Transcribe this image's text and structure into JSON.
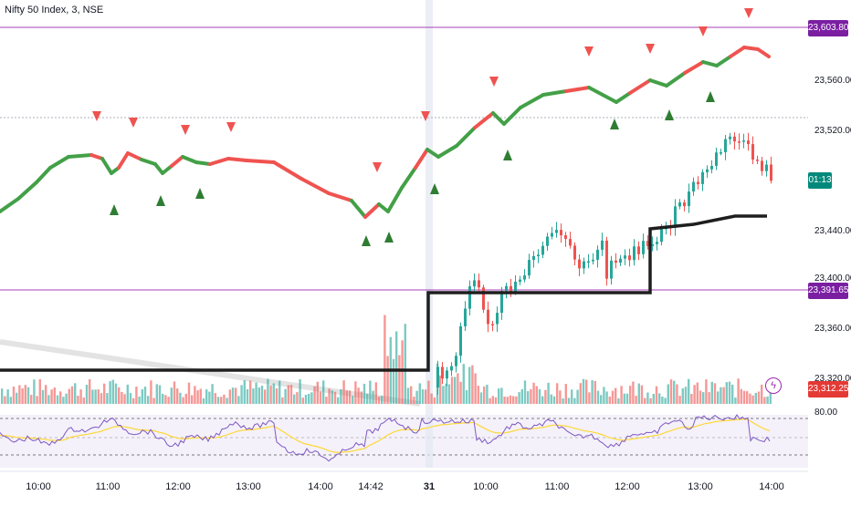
{
  "header": {
    "symbol_title": "Nifty 50 Index, 3, NSE"
  },
  "price_axis": {
    "labels": [
      "23,560.00",
      "23,520.00",
      "23,440.00",
      "23,400.00",
      "23,360.00",
      "23,320.00"
    ],
    "last_price_tag": "23,312.25",
    "countdown_tag": "01:13",
    "upper_level_tag": "23,603.80",
    "lower_level_tag": "23,391.65",
    "rsi_level_label": "80.00"
  },
  "time_axis": {
    "labels": [
      "10:00",
      "11:00",
      "12:00",
      "13:00",
      "14:00",
      "14:42",
      "31",
      "10:00",
      "11:00",
      "12:00",
      "13:00",
      "14:00"
    ]
  },
  "colors": {
    "up": "#26a69a",
    "down": "#ef5350",
    "trail_up": "#43a047",
    "trail_down": "#ef5350",
    "level_line": "#9c27b0",
    "level_tag": "#7b1fa2",
    "price_tag": "#e53935",
    "countdown_tag": "#00897b",
    "rsi_line": "#7e57c2",
    "rsi_ma": "#fdd835",
    "black_line": "#1e1e1e"
  },
  "icons": {
    "alert": "lightning-bolt-icon"
  }
}
